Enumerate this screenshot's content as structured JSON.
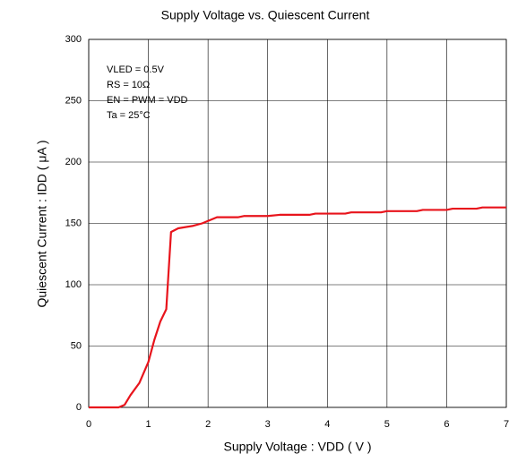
{
  "chart_data": {
    "type": "line",
    "title": "Supply Voltage vs. Quiescent Current",
    "x_label": "Supply Voltage : VDD ( V )",
    "y_label": "Quiescent Current : IDD ( μA )",
    "annotations": [
      "VLED = 0.5V",
      "RS = 10Ω",
      "EN = PWM = VDD",
      "Ta = 25°C"
    ],
    "x": [
      0,
      0.5,
      0.6,
      0.7,
      0.85,
      1,
      1.1,
      1.2,
      1.3,
      1.38,
      1.5,
      1.75,
      1.9,
      2.0,
      2.15,
      2.5,
      2.6,
      3.0,
      3.2,
      3.7,
      3.8,
      4.3,
      4.4,
      4.9,
      5.0,
      5.5,
      5.6,
      6.0,
      6.1,
      6.5,
      6.6,
      7.0
    ],
    "series": [
      {
        "name": "IDD",
        "color": "#e8141c",
        "values": [
          0,
          0,
          2,
          10,
          20,
          37,
          55,
          70,
          80,
          143,
          146,
          148,
          150,
          152,
          155,
          155,
          156,
          156,
          157,
          157,
          158,
          158,
          159,
          159,
          160,
          160,
          161,
          161,
          162,
          162,
          163,
          163
        ]
      }
    ],
    "xlim": [
      0,
      7
    ],
    "xticks": [
      0,
      1,
      2,
      3,
      4,
      5,
      6,
      7
    ],
    "ylim": [
      0,
      300
    ],
    "yticks": [
      0,
      50,
      100,
      150,
      200,
      250,
      300
    ],
    "grid": true
  }
}
